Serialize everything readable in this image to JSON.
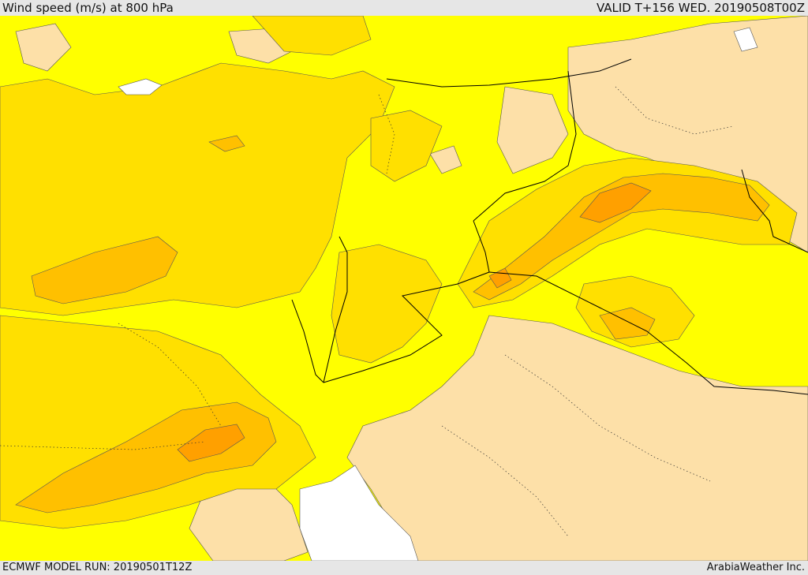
{
  "header": {
    "title": "Wind speed (m/s) at 800 hPa",
    "valid": "VALID T+156 WED. 20190508T00Z"
  },
  "footer": {
    "model_run": "ECMWF MODEL RUN: 20190501T12Z",
    "credit": "ArabiaWeather Inc."
  },
  "map": {
    "region": "Eastern Mediterranean / Levant",
    "colors": {
      "light": "#fde0a8",
      "yellow": "#ffff00",
      "gold": "#ffe000",
      "amber": "#ffc000",
      "orange": "#ffa000",
      "water_gap": "#ffffff",
      "border": "#000000"
    }
  }
}
